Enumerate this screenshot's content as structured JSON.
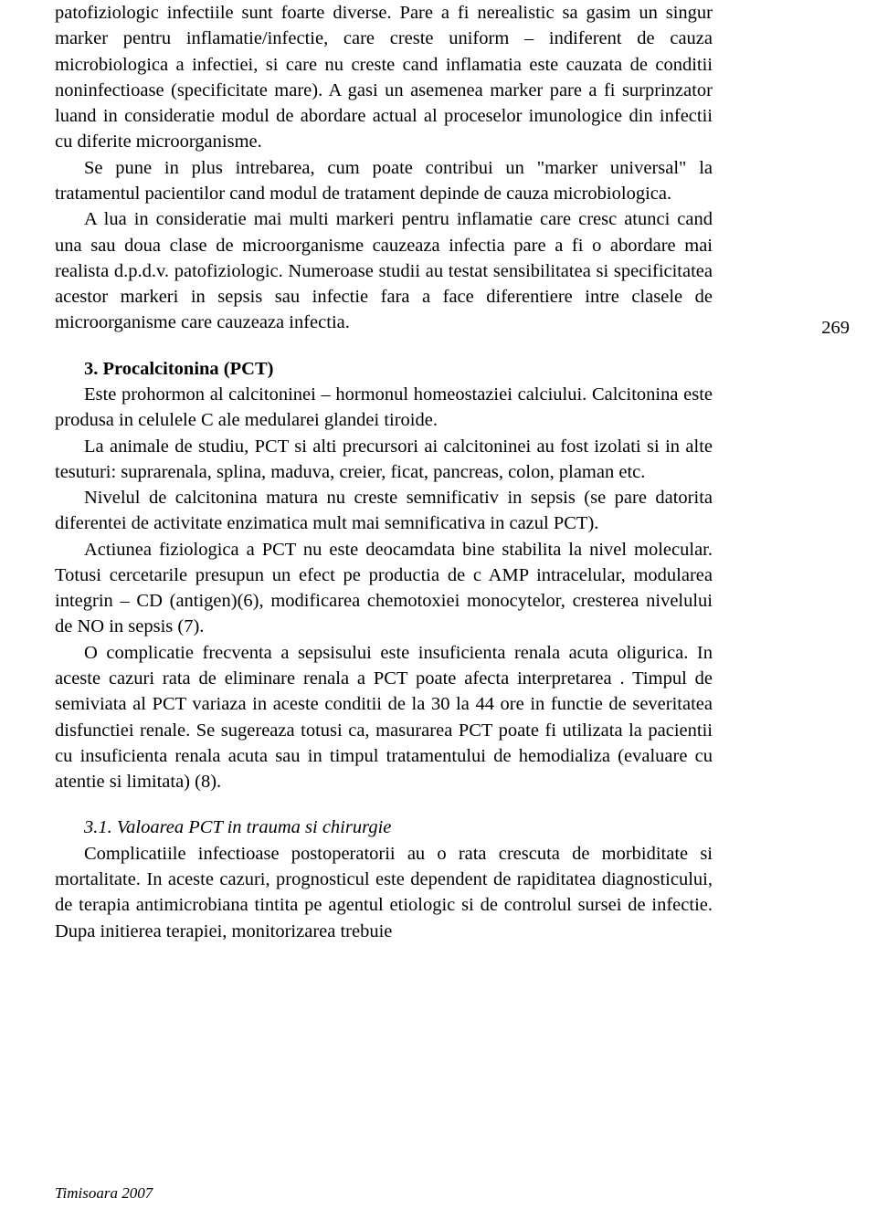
{
  "page_number": "269",
  "footer": "Timisoara 2007",
  "colors": {
    "background": "#ffffff",
    "text": "#000000"
  },
  "typography": {
    "body_fontsize": 20.5,
    "line_height": 1.38,
    "font_family": "Georgia, 'Times New Roman', serif",
    "text_indent": 32,
    "footer_fontsize": 17
  },
  "paragraphs": {
    "p1": "patofiziologic infectiile sunt foarte diverse. Pare a fi nerealistic sa gasim un singur marker pentru inflamatie/infectie, care creste uniform – indiferent de cauza microbiologica a infectiei, si care nu creste cand inflamatia este cauzata de conditii noninfectioase (specificitate mare). A gasi un asemenea marker pare a fi surprinzator luand in consideratie modul de abordare actual al proceselor imunologice din infectii cu diferite microorganisme.",
    "p2": "Se pune in plus intrebarea, cum poate contribui un \"marker universal\" la tratamentul pacientilor cand modul de tratament depinde de cauza microbiologica.",
    "p3": "A lua in consideratie mai multi markeri pentru inflamatie care cresc atunci cand una sau doua clase de microorganisme cauzeaza infectia pare a fi o abordare mai realista d.p.d.v. patofiziologic. Numeroase studii au testat sensibilitatea si specificitatea acestor markeri in sepsis sau infectie fara a face diferentiere intre clasele de microorganisme care cauzeaza infectia.",
    "h3": "3. Procalcitonina (PCT)",
    "p4": "Este prohormon al calcitoninei – hormonul homeostaziei calciului. Calcitonina este produsa in celulele C ale medularei glandei tiroide.",
    "p5": "La animale de studiu, PCT si alti precursori ai calcitoninei au fost izolati si in alte tesuturi: suprarenala, splina, maduva, creier, ficat, pancreas, colon, plaman etc.",
    "p6": "Nivelul de calcitonina matura nu creste semnificativ in sepsis (se pare datorita diferentei de activitate enzimatica mult mai semnificativa in cazul PCT).",
    "p7": "Actiunea fiziologica a PCT nu este  deocamdata bine stabilita la nivel molecular. Totusi cercetarile presupun un efect pe productia de c AMP intracelular, modularea integrin – CD (antigen)(6), modificarea chemotoxiei monocytelor, cresterea  nivelului de NO in sepsis (7).",
    "p8": "O complicatie frecventa a sepsisului este insuficienta renala acuta oligurica. In aceste cazuri rata de eliminare renala a PCT poate afecta interpretarea . Timpul de semiviata al PCT variaza in aceste conditii de la 30 la 44 ore in functie de severitatea disfunctiei renale. Se sugereaza  totusi ca, masurarea PCT poate fi utilizata la pacientii cu insuficienta renala acuta sau in timpul tratamentului de hemodializa (evaluare cu atentie si limitata) (8).",
    "h31": "3.1. Valoarea PCT in trauma si chirurgie",
    "p9": "Complicatiile infectioase postoperatorii au o rata crescuta  de morbiditate si mortalitate. In aceste cazuri, prognosticul este dependent de rapiditatea diagnosticului, de terapia antimicrobiana tintita pe agentul etiologic si de controlul sursei de infectie. Dupa initierea terapiei, monitorizarea trebuie"
  }
}
